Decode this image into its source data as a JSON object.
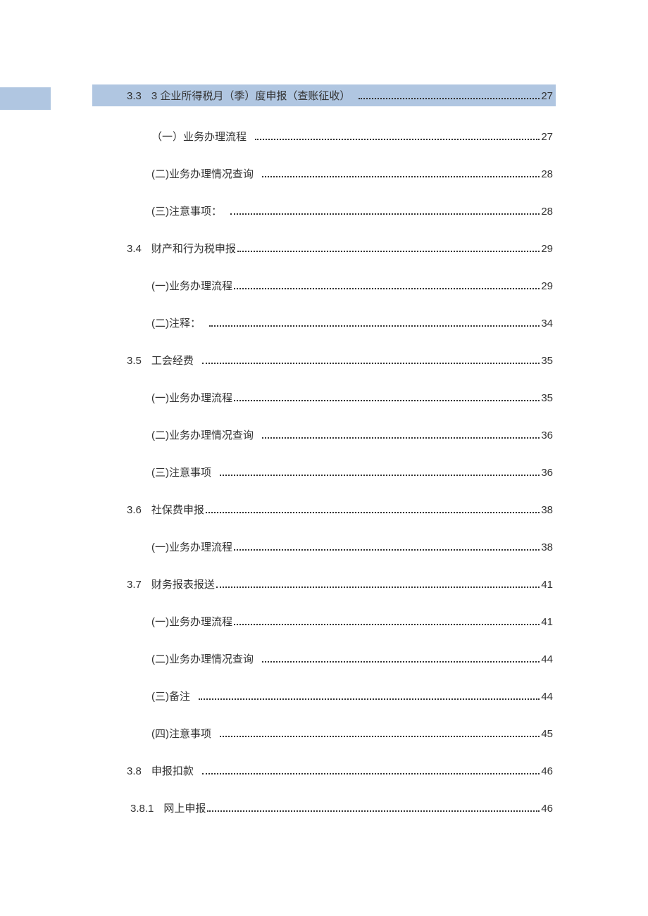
{
  "toc": {
    "entries": [
      {
        "level": 1,
        "highlighted": true,
        "number": "3.3",
        "title": "3 企业所得税月（季）度申报（查账征收）",
        "page": "27"
      },
      {
        "level": 2,
        "highlighted": false,
        "number": "",
        "title": "（一）业务办理流程",
        "page": "27"
      },
      {
        "level": 2,
        "highlighted": false,
        "number": "",
        "title": "(二)业务办理情况查询",
        "page": "28"
      },
      {
        "level": 2,
        "highlighted": false,
        "number": "",
        "title": "(三)注意事项：",
        "page": "28"
      },
      {
        "level": 1,
        "highlighted": false,
        "number": "3.4",
        "title": "财产和行为税申报",
        "page": "29"
      },
      {
        "level": 2,
        "highlighted": false,
        "number": "",
        "title": "(一)业务办理流程",
        "page": "29"
      },
      {
        "level": 2,
        "highlighted": false,
        "number": "",
        "title": "(二)注释：",
        "page": "34"
      },
      {
        "level": 1,
        "highlighted": false,
        "number": "3.5",
        "title": "工会经费",
        "page": "35"
      },
      {
        "level": 2,
        "highlighted": false,
        "number": "",
        "title": "(一)业务办理流程",
        "page": "35"
      },
      {
        "level": 2,
        "highlighted": false,
        "number": "",
        "title": "(二)业务办理情况查询",
        "page": "36"
      },
      {
        "level": 2,
        "highlighted": false,
        "number": "",
        "title": "(三)注意事项",
        "page": "36"
      },
      {
        "level": 1,
        "highlighted": false,
        "number": "3.6",
        "title": "社保费申报",
        "page": "38"
      },
      {
        "level": 2,
        "highlighted": false,
        "number": "",
        "title": "(一)业务办理流程",
        "page": "38"
      },
      {
        "level": 1,
        "highlighted": false,
        "number": "3.7",
        "title": "财务报表报送",
        "page": "41"
      },
      {
        "level": 2,
        "highlighted": false,
        "number": "",
        "title": "(一)业务办理流程",
        "page": "41"
      },
      {
        "level": 2,
        "highlighted": false,
        "number": "",
        "title": "(二)业务办理情况查询",
        "page": "44"
      },
      {
        "level": 2,
        "highlighted": false,
        "number": "",
        "title": "(三)备注",
        "page": "44"
      },
      {
        "level": 2,
        "highlighted": false,
        "number": "",
        "title": "(四)注意事项",
        "page": "45"
      },
      {
        "level": 1,
        "highlighted": false,
        "number": "3.8",
        "title": "申报扣款",
        "page": "46"
      },
      {
        "level": 3,
        "highlighted": false,
        "number": "3.8.1",
        "title": "网上申报",
        "page": "46"
      }
    ]
  },
  "colors": {
    "highlight_bg": "#b0c6e1",
    "text": "#333333",
    "background": "#ffffff"
  }
}
